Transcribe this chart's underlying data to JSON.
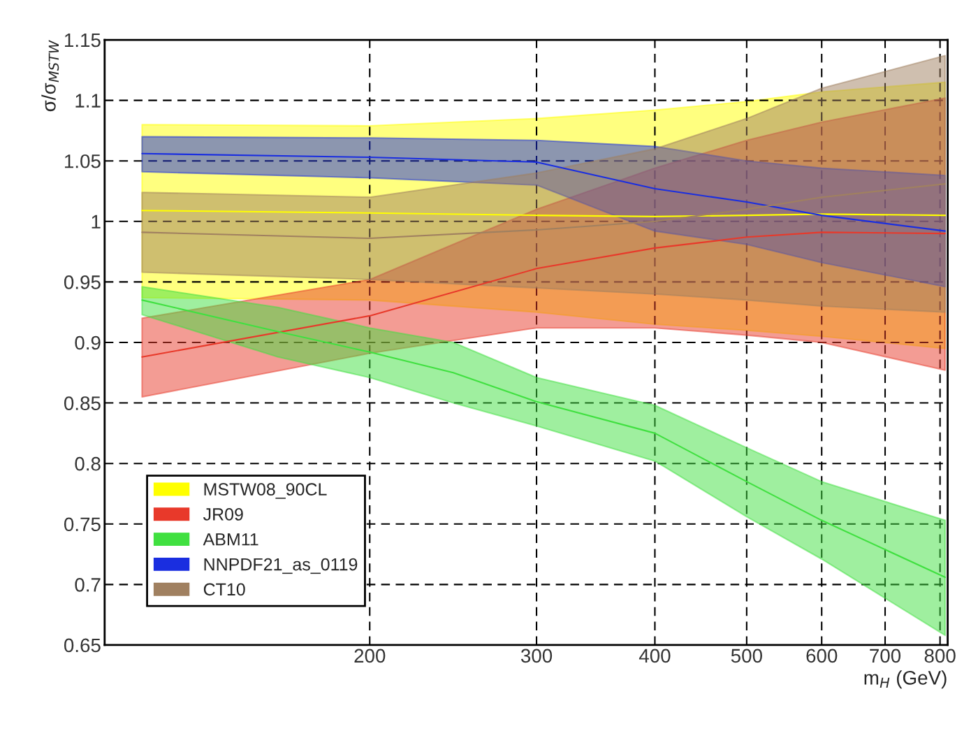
{
  "chart_data": {
    "type": "line",
    "xlabel": "m$_{H}$ (GeV)",
    "ylabel": "σ/σ$_{MSTW}$",
    "log": "x",
    "xlim": [
      105,
      815
    ],
    "xticks": [
      200,
      300,
      400,
      500,
      600,
      700,
      800
    ],
    "ylim": [
      0.65,
      1.15
    ],
    "yticks": [
      0.65,
      0.7,
      0.75,
      0.8,
      0.85,
      0.9,
      0.95,
      1,
      1.05,
      1.1,
      1.15
    ],
    "grid": true,
    "legend": "bottom left",
    "series": [
      {
        "name": "MSTW08_90CL",
        "color": "#ffff00",
        "x": [
          115,
          200,
          300,
          400,
          500,
          600,
          810
        ],
        "values": [
          1.009,
          1.007,
          1.005,
          1.004,
          1.005,
          1.006,
          1.005
        ],
        "lower": [
          0.937,
          0.935,
          0.925,
          0.915,
          0.91,
          0.905,
          0.895
        ],
        "upper": [
          1.08,
          1.079,
          1.085,
          1.092,
          1.099,
          1.107,
          1.115
        ]
      },
      {
        "name": "JR09",
        "color": "#e8392a",
        "x": [
          115,
          200,
          300,
          400,
          500,
          600,
          810
        ],
        "values": [
          0.888,
          0.922,
          0.961,
          0.978,
          0.987,
          0.991,
          0.99
        ],
        "lower": [
          0.855,
          0.891,
          0.912,
          0.912,
          0.906,
          0.9,
          0.877
        ],
        "upper": [
          0.92,
          0.952,
          1.01,
          1.044,
          1.067,
          1.082,
          1.102
        ]
      },
      {
        "name": "ABM11",
        "color": "#40e040",
        "x": [
          115,
          160,
          200,
          245,
          300,
          400,
          500,
          600,
          810
        ],
        "values": [
          0.935,
          0.909,
          0.892,
          0.875,
          0.851,
          0.825,
          0.785,
          0.753,
          0.706
        ],
        "lower": [
          0.923,
          0.888,
          0.871,
          0.85,
          0.831,
          0.802,
          0.756,
          0.721,
          0.658
        ],
        "upper": [
          0.946,
          0.929,
          0.912,
          0.9,
          0.871,
          0.848,
          0.813,
          0.785,
          0.753
        ]
      },
      {
        "name": "NNPDF21_as_0119",
        "color": "#1a2ee0",
        "x": [
          115,
          200,
          300,
          400,
          500,
          600,
          810
        ],
        "values": [
          1.056,
          1.053,
          1.049,
          1.027,
          1.016,
          1.005,
          0.992
        ],
        "lower": [
          1.041,
          1.036,
          1.03,
          0.992,
          0.981,
          0.966,
          0.946
        ],
        "upper": [
          1.07,
          1.069,
          1.067,
          1.062,
          1.05,
          1.044,
          1.038
        ]
      },
      {
        "name": "CT10",
        "color": "#a08060",
        "x": [
          115,
          200,
          300,
          400,
          500,
          600,
          810
        ],
        "values": [
          0.991,
          0.986,
          0.993,
          1.0,
          1.01,
          1.02,
          1.031
        ],
        "lower": [
          0.958,
          0.952,
          0.945,
          0.94,
          0.935,
          0.93,
          0.925
        ],
        "upper": [
          1.024,
          1.02,
          1.04,
          1.06,
          1.085,
          1.11,
          1.137
        ]
      }
    ]
  }
}
